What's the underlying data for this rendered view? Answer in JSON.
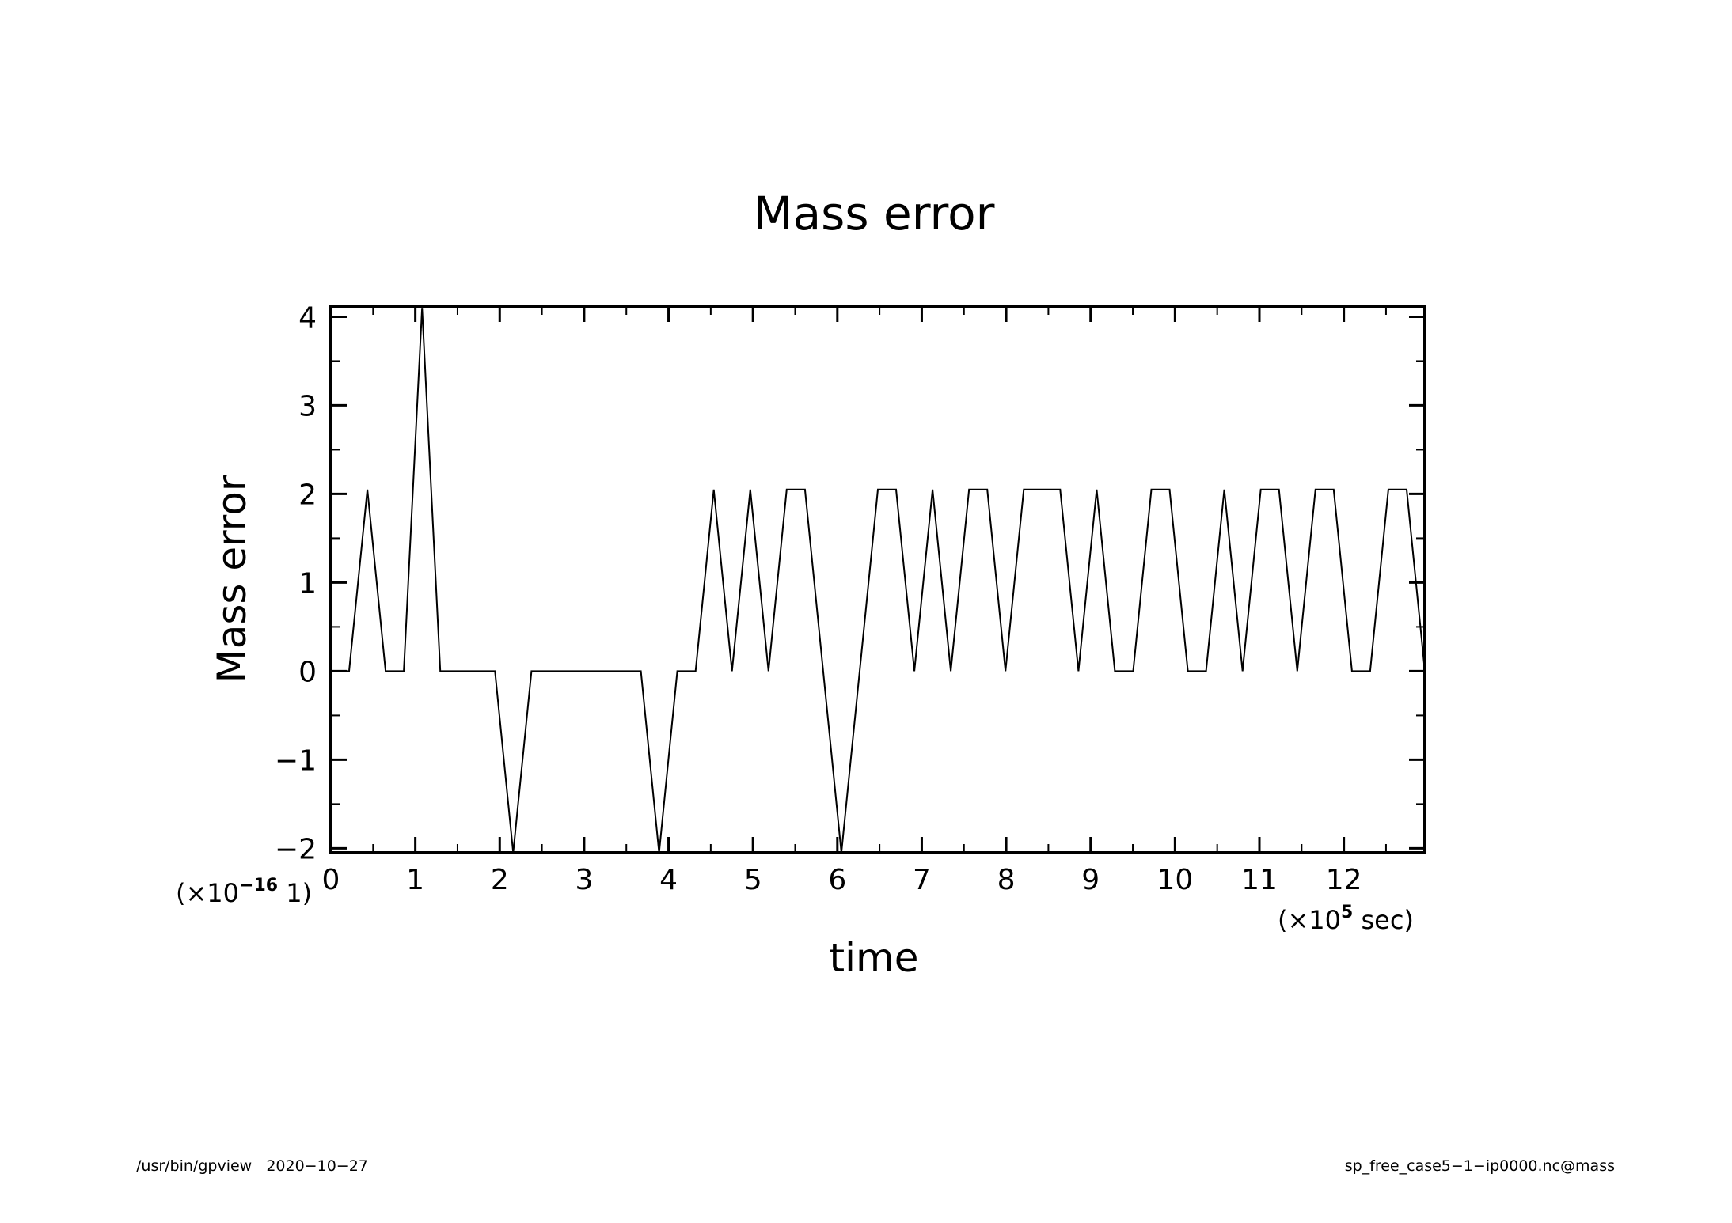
{
  "chart_data": {
    "type": "line",
    "title": "Mass error",
    "xlabel": "time",
    "ylabel": "Mass error",
    "x_scale": {
      "prefix": "(×10",
      "exponent": "5",
      "suffix": " sec)"
    },
    "y_scale": {
      "prefix": "(×10",
      "exponent": "−16",
      "suffix": " 1)"
    },
    "xlim": [
      0,
      12.96
    ],
    "ylim": [
      -2.05,
      4.12
    ],
    "x_ticks": [
      0,
      1,
      2,
      3,
      4,
      5,
      6,
      7,
      8,
      9,
      10,
      11,
      12
    ],
    "x_tick_labels": [
      "0",
      "1",
      "2",
      "3",
      "4",
      "5",
      "6",
      "7",
      "8",
      "9",
      "10",
      "11",
      "12"
    ],
    "y_ticks": [
      -2,
      -1,
      0,
      1,
      2,
      3,
      4
    ],
    "y_tick_labels": [
      "−2",
      "−1",
      "0",
      "1",
      "2",
      "3",
      "4"
    ],
    "grid": false,
    "series": [
      {
        "x": [
          0,
          0.216,
          0.432,
          0.648,
          0.864,
          1.08,
          1.296,
          1.512,
          1.728,
          1.944,
          2.16,
          2.376,
          2.592,
          2.808,
          3.024,
          3.24,
          3.456,
          3.672,
          3.888,
          4.104,
          4.32,
          4.536,
          4.752,
          4.968,
          5.184,
          5.4,
          5.616,
          5.832,
          6.048,
          6.264,
          6.48,
          6.696,
          6.912,
          7.128,
          7.344,
          7.56,
          7.776,
          7.992,
          8.208,
          8.424,
          8.64,
          8.856,
          9.072,
          9.288,
          9.504,
          9.72,
          9.936,
          10.152,
          10.368,
          10.584,
          10.8,
          11.016,
          11.232,
          11.448,
          11.664,
          11.88,
          12.096,
          12.312,
          12.528,
          12.744,
          12.96
        ],
        "y": [
          0,
          0,
          2.05,
          0,
          0,
          4.1,
          0,
          0,
          0,
          0,
          -2.05,
          0,
          0,
          0,
          0,
          0,
          0,
          0,
          -2.05,
          0,
          0,
          2.05,
          0,
          2.05,
          0,
          2.05,
          2.05,
          0,
          -2.05,
          0,
          2.05,
          2.05,
          0,
          2.05,
          0,
          2.05,
          2.05,
          0,
          2.05,
          2.05,
          2.05,
          0,
          2.05,
          0,
          0,
          2.05,
          2.05,
          0,
          0,
          2.05,
          0,
          2.05,
          2.05,
          0,
          2.05,
          2.05,
          0,
          0,
          2.05,
          2.05,
          0
        ]
      }
    ]
  },
  "footer": {
    "left": "/usr/bin/gpview   2020−10−27",
    "right": "sp_free_case5−1−ip0000.nc@mass"
  }
}
